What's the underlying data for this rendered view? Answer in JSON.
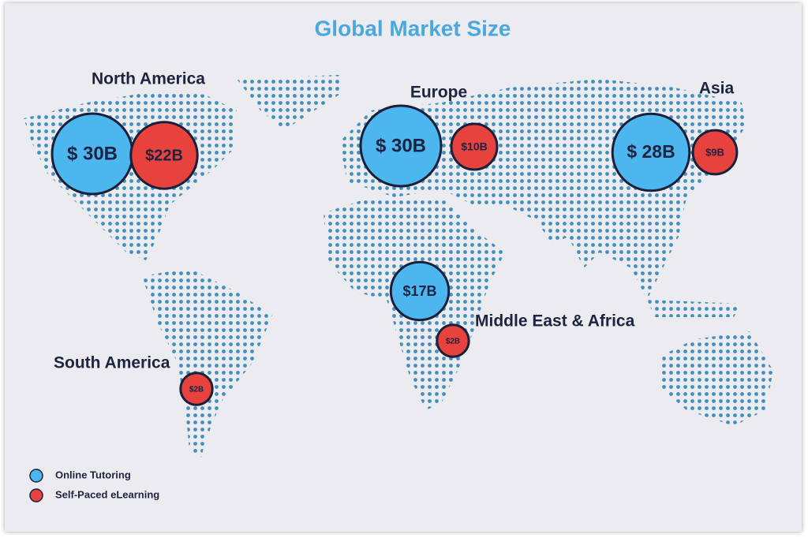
{
  "title": "Global Market Size",
  "regions": [
    {
      "name": "North America",
      "online_tutoring": {
        "value": 30,
        "label": "$ 30B"
      },
      "self_paced": {
        "value": 22,
        "label": "$22B"
      }
    },
    {
      "name": "Europe",
      "online_tutoring": {
        "value": 30,
        "label": "$ 30B"
      },
      "self_paced": {
        "value": 10,
        "label": "$10B"
      }
    },
    {
      "name": "Asia",
      "online_tutoring": {
        "value": 28,
        "label": "$ 28B"
      },
      "self_paced": {
        "value": 9,
        "label": "$9B"
      }
    },
    {
      "name": "Middle East & Africa",
      "online_tutoring": {
        "value": 17,
        "label": "$17B"
      },
      "self_paced": {
        "value": 2,
        "label": "$2B"
      }
    },
    {
      "name": "South America",
      "self_paced": {
        "value": 2,
        "label": "$2B"
      }
    }
  ],
  "legend": [
    {
      "key": "online_tutoring",
      "name": "Online Tutoring",
      "color": "#4cb6ee"
    },
    {
      "key": "self_paced",
      "name": "Self-Paced eLearning",
      "color": "#e8423e"
    }
  ]
}
